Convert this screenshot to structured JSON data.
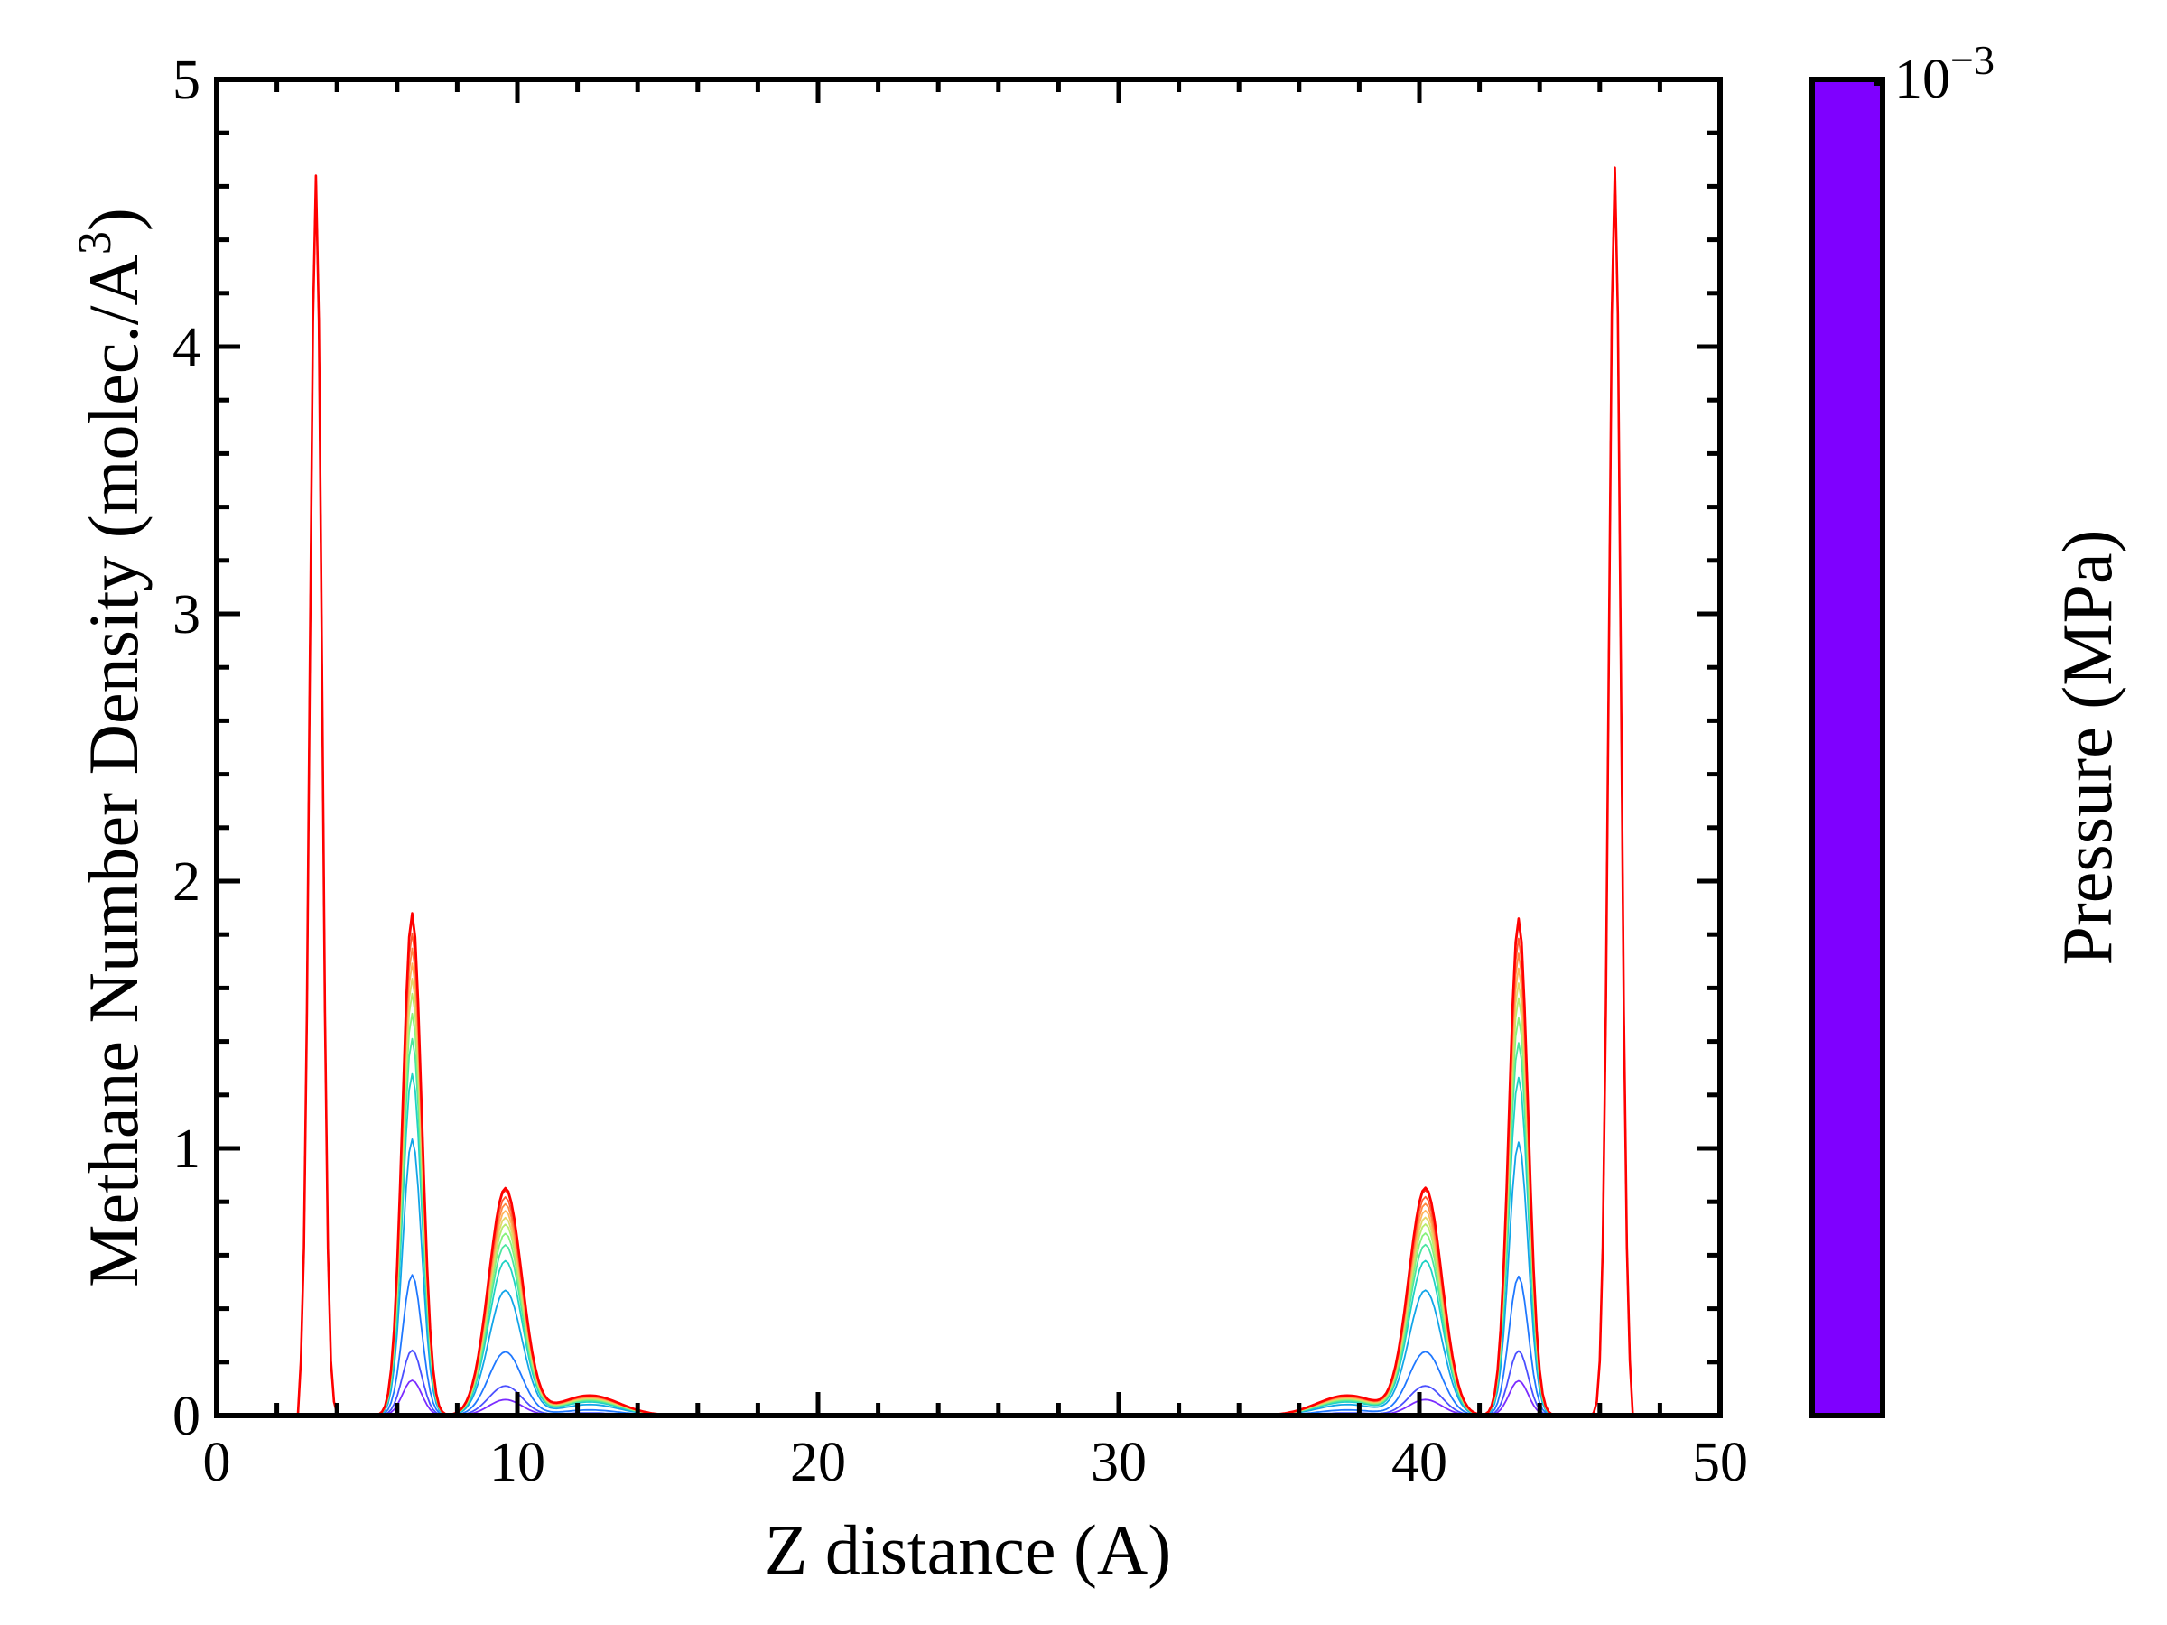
{
  "chart_data": [
    {
      "type": "line",
      "title": "",
      "xlabel": "Z distance (A)",
      "ylabel_main": "Methane Number Density (molec./A",
      "ylabel_sup": "3",
      "ylabel_close": ")",
      "xlim": [
        0,
        50
      ],
      "ylim": [
        0,
        5
      ],
      "x_ticks": [
        0,
        10,
        20,
        30,
        40,
        50
      ],
      "x_tick_labels": [
        "0",
        "10",
        "20",
        "30",
        "40",
        "50"
      ],
      "y_ticks": [
        0,
        1,
        2,
        3,
        4,
        5
      ],
      "y_tick_labels": [
        "0",
        "1",
        "2",
        "3",
        "4",
        "5"
      ],
      "grid": false,
      "legend": "none",
      "colormap": "rainbow",
      "series_colors": [
        "#7b2cff",
        "#4b50ff",
        "#1f78ff",
        "#12a5e8",
        "#1fd2c4",
        "#4ce69f",
        "#87f27c",
        "#b8ec6f",
        "#e3d66a",
        "#ffb45a",
        "#ff8a45",
        "#ff5a30",
        "#ff2a1a",
        "#ff0000"
      ],
      "series_scales": [
        0.07,
        0.13,
        0.28,
        0.55,
        0.68,
        0.75,
        0.8,
        0.84,
        0.87,
        0.9,
        0.93,
        0.96,
        0.99,
        1.0
      ],
      "peaks": {
        "left_wall": {
          "z": 3.3,
          "max_density": 4.64
        },
        "right_wall": {
          "z": 46.5,
          "max_density": 4.67
        },
        "left_second": {
          "z": 6.5,
          "max_density": 1.88
        },
        "right_second": {
          "z": 43.3,
          "max_density": 1.86
        },
        "left_third": {
          "z": 9.6,
          "max_density": 0.85
        },
        "right_third": {
          "z": 40.2,
          "max_density": 0.85
        }
      }
    },
    {
      "type": "colorbar",
      "label": "Pressure (MPa)",
      "tick_label_base": "10",
      "tick_label_exp": "−3",
      "fill_color": "#7f00ff"
    }
  ]
}
